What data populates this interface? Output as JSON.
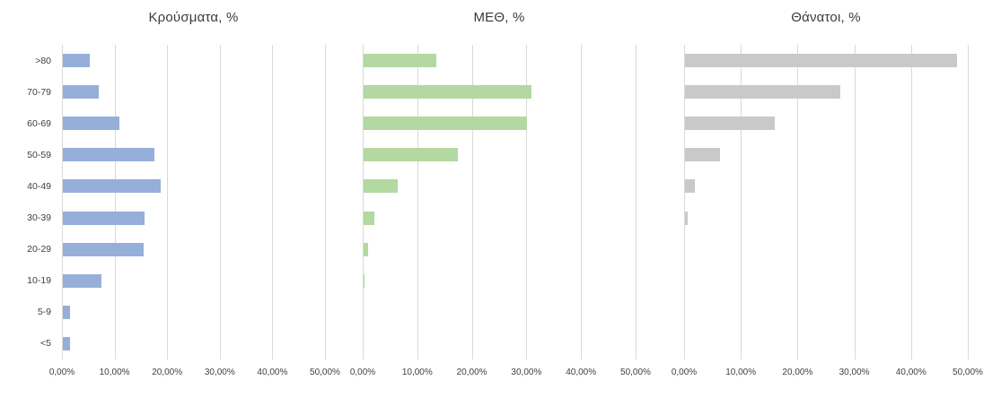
{
  "figure": {
    "background": "#ffffff",
    "gridline_color": "#d9d9d9",
    "text_color": "#404040"
  },
  "chart_data": [
    {
      "type": "bar",
      "orientation": "horizontal",
      "title": "Κρούσματα, %",
      "categories": [
        ">80",
        "70-79",
        "60-69",
        "50-59",
        "40-49",
        "30-39",
        "20-29",
        "10-19",
        "5-9",
        "<5"
      ],
      "values": [
        5.1,
        6.8,
        10.7,
        17.4,
        18.6,
        15.6,
        15.4,
        7.3,
        1.4,
        1.3
      ],
      "bar_color": "#95AFD8",
      "xlim": [
        0,
        50
      ],
      "x_ticks": [
        "0,00%",
        "10,00%",
        "20,00%",
        "30,00%",
        "40,00%",
        "50,00%"
      ],
      "grid": true,
      "legend": "none",
      "show_category_labels": true
    },
    {
      "type": "bar",
      "orientation": "horizontal",
      "title": "ΜΕΘ, %",
      "categories": [
        ">80",
        "70-79",
        "60-69",
        "50-59",
        "40-49",
        "30-39",
        "20-29",
        "10-19",
        "5-9",
        "<5"
      ],
      "values": [
        13.3,
        30.8,
        30.0,
        17.3,
        6.2,
        2.0,
        0.8,
        0.2,
        0,
        0
      ],
      "bar_color": "#B3D8A1",
      "xlim": [
        0,
        50
      ],
      "x_ticks": [
        "0,00%",
        "10,00%",
        "20,00%",
        "30,00%",
        "40,00%",
        "50,00%"
      ],
      "grid": true,
      "legend": "none",
      "show_category_labels": false
    },
    {
      "type": "bar",
      "orientation": "horizontal",
      "title": "Θάνατοι, %",
      "categories": [
        ">80",
        "70-79",
        "60-69",
        "50-59",
        "40-49",
        "30-39",
        "20-29",
        "10-19",
        "5-9",
        "<5"
      ],
      "values": [
        48.0,
        27.3,
        15.8,
        6.2,
        1.8,
        0.5,
        0,
        0,
        0,
        0
      ],
      "bar_color": "#C9C9C9",
      "xlim": [
        0,
        50
      ],
      "x_ticks": [
        "0,00%",
        "10,00%",
        "20,00%",
        "30,00%",
        "40,00%",
        "50,00%"
      ],
      "grid": true,
      "legend": "none",
      "show_category_labels": false
    }
  ]
}
